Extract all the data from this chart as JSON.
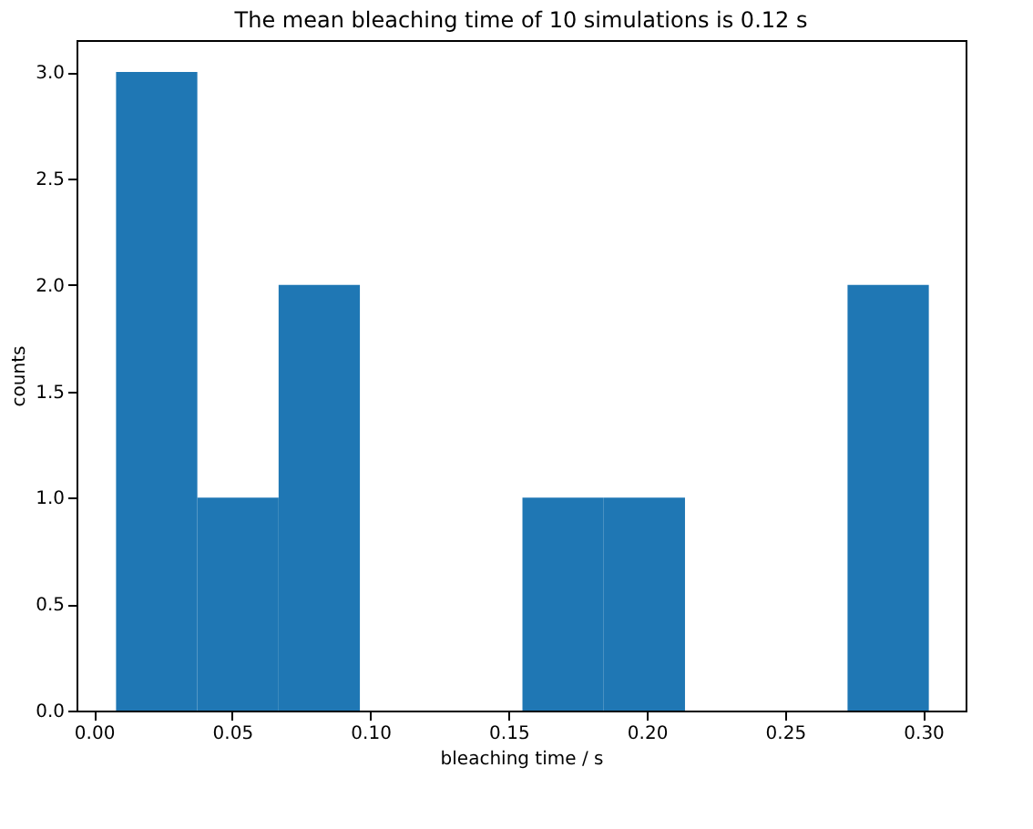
{
  "chart_data": {
    "type": "histogram",
    "title": "The mean bleaching time of 10 simulations is 0.12 s",
    "xlabel": "bleaching time / s",
    "ylabel": "counts",
    "bins": [
      0.008,
      0.0374,
      0.0668,
      0.0962,
      0.1256,
      0.155,
      0.1844,
      0.2138,
      0.2432,
      0.2726,
      0.302
    ],
    "values": [
      3,
      1,
      2,
      0,
      0,
      1,
      1,
      0,
      0,
      2
    ],
    "color": "#1f77b4",
    "xlim": [
      -0.0063,
      0.3153
    ],
    "xticks": [
      {
        "value": 0,
        "label": "0.00"
      },
      0.05,
      {
        "value": 0.1,
        "label": "0.10"
      },
      0.15,
      {
        "value": 0.2,
        "label": "0.20"
      },
      0.25,
      {
        "value": 0.3,
        "label": "0.30"
      }
    ],
    "ylim": [
      0,
      3.15
    ],
    "yticks": [
      {
        "value": 0,
        "label": "0.0"
      },
      0.5,
      {
        "value": 1,
        "label": "1.0"
      },
      1.5,
      {
        "value": 2,
        "label": "2.0"
      },
      2.5,
      {
        "value": 3,
        "label": "3.0"
      }
    ],
    "grid": false
  }
}
